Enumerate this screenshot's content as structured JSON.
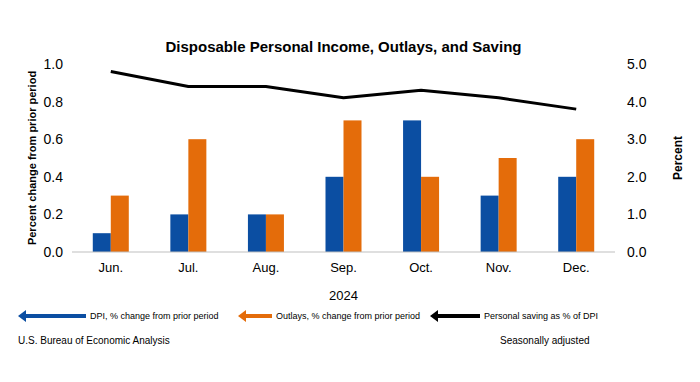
{
  "chart_data": {
    "type": "bar",
    "title": "Disposable Personal Income, Outlays, and Saving",
    "categories": [
      "Jun.",
      "Jul.",
      "Aug.",
      "Sep.",
      "Oct.",
      "Nov.",
      "Dec."
    ],
    "x_label": "2024",
    "y_label": "Percent change from prior period",
    "y2_label": "Percent",
    "series": [
      {
        "name": "DPI, % change from prior period",
        "color": "#0b4ea2",
        "type": "bar",
        "values": [
          0.1,
          0.2,
          0.2,
          0.4,
          0.7,
          0.3,
          0.4
        ]
      },
      {
        "name": "Outlays, % change from prior period",
        "color": "#e46c0a",
        "type": "bar",
        "values": [
          0.3,
          0.6,
          0.2,
          0.7,
          0.4,
          0.5,
          0.6
        ]
      },
      {
        "name": "Personal saving as % of DPI",
        "color": "#000000",
        "type": "line",
        "axis": "y2",
        "values": [
          4.8,
          4.4,
          4.4,
          4.1,
          4.3,
          4.1,
          3.8
        ]
      }
    ],
    "ylim": [
      0,
      1
    ],
    "yticks": [
      {
        "value": 0,
        "label": "0.0"
      },
      0.2,
      0.4,
      0.6,
      0.8,
      {
        "value": 1,
        "label": "1.0"
      }
    ],
    "y2lim": [
      0,
      5
    ],
    "y2ticks": [
      {
        "value": 0,
        "label": "0.0"
      },
      {
        "value": 1,
        "label": "1.0"
      },
      {
        "value": 2,
        "label": "2.0"
      },
      {
        "value": 3,
        "label": "3.0"
      },
      {
        "value": 4,
        "label": "4.0"
      },
      {
        "value": 5,
        "label": "5.0"
      }
    ],
    "grid": false,
    "legend": "bottom",
    "annotations": [
      "U.S. Bureau of Economic Analysis",
      "Seasonally adjusted"
    ]
  }
}
